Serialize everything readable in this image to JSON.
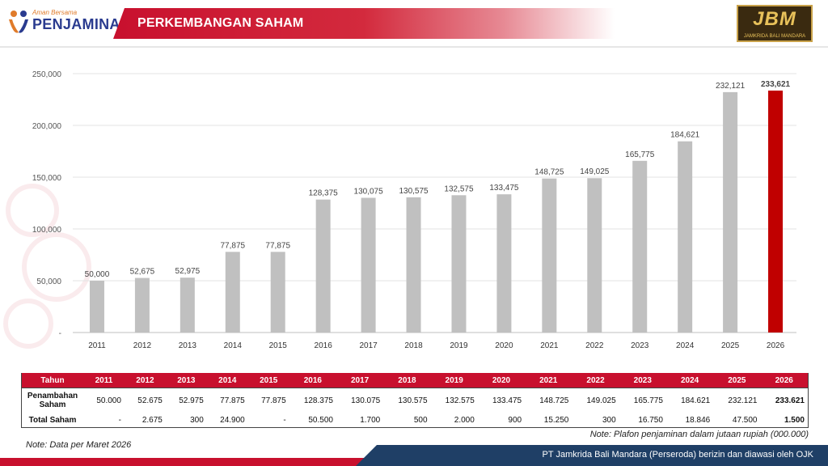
{
  "header": {
    "logo_small": "Aman Bersama",
    "logo_main": "PENJAMINAN",
    "title": "PERKEMBANGAN SAHAM",
    "brand_logo": "JBM",
    "brand_sub": "JAMKRIDA BALI MANDARA"
  },
  "colors": {
    "bar_default": "#c0c0c0",
    "bar_highlight": "#c00000",
    "header_red": "#c8102e",
    "footer_blue": "#1f3f66"
  },
  "chart_data": {
    "type": "bar",
    "categories": [
      "2011",
      "2012",
      "2013",
      "2014",
      "2015",
      "2016",
      "2017",
      "2018",
      "2019",
      "2020",
      "2021",
      "2022",
      "2023",
      "2024",
      "2025",
      "2026"
    ],
    "values": [
      50000,
      52675,
      52975,
      77875,
      77875,
      128375,
      130075,
      130575,
      132575,
      133475,
      148725,
      149025,
      165775,
      184621,
      232121,
      233621
    ],
    "value_labels": [
      "50,000",
      "52,675",
      "52,975",
      "77,875",
      "77,875",
      "128,375",
      "130,075",
      "130,575",
      "132,575",
      "133,475",
      "148,725",
      "149,025",
      "165,775",
      "184,621",
      "232,121",
      "233,621"
    ],
    "ylim": [
      0,
      250000
    ],
    "yticks": [
      0,
      50000,
      100000,
      150000,
      200000,
      250000
    ],
    "ytick_labels": [
      "-",
      "50,000",
      "100,000",
      "150,000",
      "200,000",
      "250,000"
    ],
    "highlight_category": "2026",
    "grid": true
  },
  "table": {
    "header_label": "Tahun",
    "years": [
      "2011",
      "2012",
      "2013",
      "2014",
      "2015",
      "2016",
      "2017",
      "2018",
      "2019",
      "2020",
      "2021",
      "2022",
      "2023",
      "2024",
      "2025",
      "2026"
    ],
    "rows": [
      {
        "label": "Penambahan Saham",
        "values": [
          "50.000",
          "52.675",
          "52.975",
          "77.875",
          "77.875",
          "128.375",
          "130.075",
          "130.575",
          "132.575",
          "133.475",
          "148.725",
          "149.025",
          "165.775",
          "184.621",
          "232.121",
          "233.621"
        ]
      },
      {
        "label": "Total Saham",
        "values": [
          "-",
          "2.675",
          "300",
          "24.900",
          "-",
          "50.500",
          "1.700",
          "500",
          "2.000",
          "900",
          "15.250",
          "300",
          "16.750",
          "18.846",
          "47.500",
          "1.500"
        ]
      }
    ]
  },
  "notes": {
    "left": "Note: Data per Maret 2026",
    "right": "Note: Plafon penjaminan dalam jutaan rupiah (000.000)"
  },
  "footer": {
    "text": "PT Jamkrida Bali Mandara (Perseroda) berizin dan diawasi oleh OJK"
  }
}
